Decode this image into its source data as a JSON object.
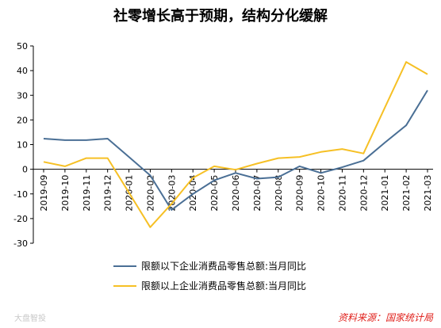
{
  "chart_data": {
    "type": "line",
    "title": "社零增长高于预期，结构分化缓解",
    "xlabel": "",
    "ylabel": "",
    "ylim": [
      -30,
      50
    ],
    "yticks": [
      -30,
      -20,
      -10,
      0,
      10,
      20,
      30,
      40,
      50
    ],
    "categories": [
      "2019-09",
      "2019-10",
      "2019-11",
      "2019-12",
      "2020-01",
      "2020-02",
      "2020-03",
      "2020-04",
      "2020-05",
      "2020-06",
      "2020-07",
      "2020-08",
      "2020-09",
      "2020-10",
      "2020-11",
      "2020-12",
      "2021-01",
      "2021-02",
      "2021-03"
    ],
    "series": [
      {
        "name": "限额以下企业消费品零售总额:当月同比",
        "color": "#4a6f95",
        "values": [
          12.4,
          11.8,
          11.8,
          12.4,
          5,
          -2.5,
          -16.5,
          -10,
          -4.5,
          -1.5,
          -3.8,
          -3.2,
          1.2,
          -1.5,
          0.8,
          3.5,
          10.8,
          17.8,
          32
        ]
      },
      {
        "name": "限额以上企业消费品零售总额:当月同比",
        "color": "#f6c025",
        "values": [
          3,
          1.2,
          4.5,
          4.5,
          -9.5,
          -23.5,
          -14,
          -3.5,
          1.2,
          -0.2,
          2.3,
          4.5,
          5,
          7,
          8.2,
          6.4,
          25,
          43.5,
          38.5
        ]
      }
    ],
    "grid": false,
    "legend": "bottom"
  },
  "source": "资料来源：国家统计局",
  "watermark": "大盘智投"
}
